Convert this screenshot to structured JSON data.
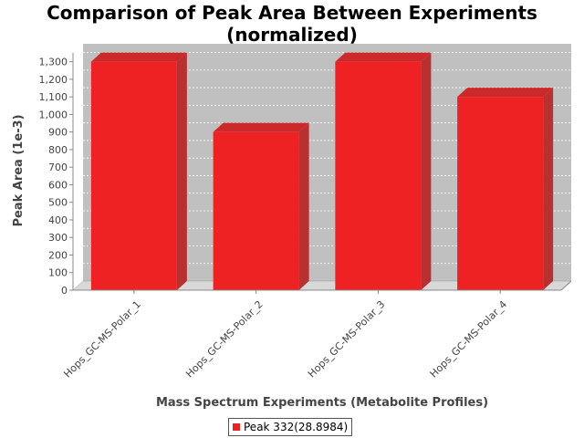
{
  "chart_data": {
    "type": "bar",
    "title_lines": [
      "Comparison of Peak Area Between Experiments",
      "(normalized)"
    ],
    "xlabel": "Mass Spectrum Experiments (Metabolite Profiles)",
    "ylabel": "Peak Area (1e-3)",
    "categories": [
      "Hops_GC-MS-Polar_1",
      "Hops_GC-MS-Polar_2",
      "Hops_GC-MS-Polar_3",
      "Hops_GC-MS-Polar_4"
    ],
    "series": [
      {
        "name": "Peak 332(28.8984)",
        "color": "#ee2222",
        "values": [
          1300,
          900,
          1300,
          1100
        ]
      }
    ],
    "ylim": [
      0,
      1350
    ],
    "yticks": [
      0,
      100,
      200,
      300,
      400,
      500,
      600,
      700,
      800,
      900,
      1000,
      1100,
      1200,
      1300
    ],
    "ytick_labels": [
      "0",
      "100",
      "200",
      "300",
      "400",
      "500",
      "600",
      "700",
      "800",
      "900",
      "1,000",
      "1,100",
      "1,200",
      "1,300"
    ],
    "grid": true,
    "legend_position": "bottom"
  }
}
